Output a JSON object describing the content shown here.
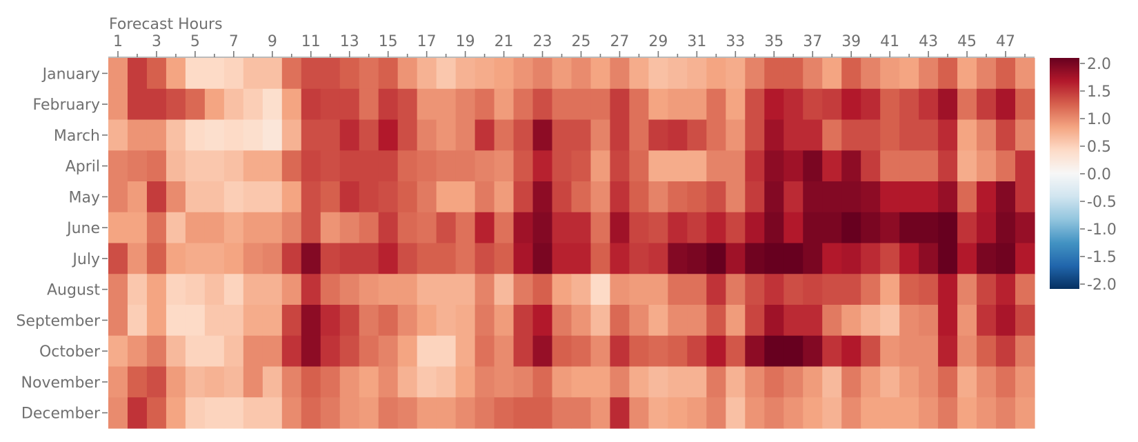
{
  "chart_data": {
    "type": "heatmap",
    "xlabel": "Forecast Hours",
    "ylabel": "",
    "x": [
      1,
      2,
      3,
      4,
      5,
      6,
      7,
      8,
      9,
      10,
      11,
      12,
      13,
      14,
      15,
      16,
      17,
      18,
      19,
      20,
      21,
      22,
      23,
      24,
      25,
      26,
      27,
      28,
      29,
      30,
      31,
      32,
      33,
      34,
      35,
      36,
      37,
      38,
      39,
      40,
      41,
      42,
      43,
      44,
      45,
      46,
      47,
      48
    ],
    "x_tick_labels": [
      "1",
      "3",
      "5",
      "7",
      "9",
      "11",
      "13",
      "15",
      "17",
      "19",
      "21",
      "23",
      "25",
      "27",
      "29",
      "31",
      "33",
      "35",
      "37",
      "39",
      "41",
      "43",
      "45",
      "47"
    ],
    "y": [
      "January",
      "February",
      "March",
      "April",
      "May",
      "June",
      "July",
      "August",
      "September",
      "October",
      "November",
      "December"
    ],
    "zlim": [
      -2.0,
      2.0
    ],
    "colorscale": "RdBu (reversed)",
    "colorbar_ticks": [
      "2.0",
      "1.5",
      "1.0",
      "0.5",
      "0.0",
      "-0.5",
      "-1.0",
      "-1.5",
      "-2.0"
    ],
    "z": [
      [
        0.9,
        1.4,
        1.2,
        0.8,
        0.4,
        0.4,
        0.45,
        0.6,
        0.6,
        1.1,
        1.3,
        1.3,
        1.2,
        1.1,
        1.2,
        0.9,
        0.7,
        0.55,
        0.7,
        0.75,
        0.8,
        0.9,
        1.0,
        0.85,
        0.95,
        0.8,
        1.0,
        0.75,
        0.6,
        0.65,
        0.7,
        0.8,
        0.75,
        1.0,
        1.2,
        1.2,
        1.0,
        0.8,
        1.2,
        1.0,
        0.85,
        0.8,
        1.0,
        1.2,
        0.8,
        1.0,
        1.2,
        0.9
      ],
      [
        0.9,
        1.4,
        1.4,
        1.3,
        1.15,
        0.8,
        0.6,
        0.5,
        0.35,
        0.8,
        1.4,
        1.35,
        1.35,
        1.1,
        1.4,
        1.3,
        0.9,
        0.9,
        1.0,
        1.1,
        0.85,
        1.1,
        1.3,
        1.1,
        1.1,
        1.1,
        1.4,
        1.1,
        0.8,
        0.85,
        0.85,
        1.1,
        0.8,
        1.3,
        1.6,
        1.5,
        1.35,
        1.4,
        1.6,
        1.5,
        1.2,
        1.3,
        1.45,
        1.7,
        1.1,
        1.4,
        1.65,
        1.2
      ],
      [
        0.7,
        0.9,
        0.9,
        0.6,
        0.4,
        0.35,
        0.4,
        0.35,
        0.25,
        0.7,
        1.3,
        1.3,
        1.5,
        1.3,
        1.6,
        1.3,
        1.0,
        0.9,
        1.0,
        1.45,
        1.1,
        1.3,
        1.8,
        1.3,
        1.3,
        1.0,
        1.4,
        1.1,
        1.4,
        1.45,
        1.3,
        1.1,
        0.9,
        1.3,
        1.7,
        1.5,
        1.5,
        1.1,
        1.3,
        1.3,
        1.2,
        1.3,
        1.3,
        1.5,
        0.8,
        1.0,
        1.35,
        1.0
      ],
      [
        1.0,
        1.05,
        1.1,
        0.65,
        0.55,
        0.55,
        0.6,
        0.75,
        0.75,
        1.15,
        1.35,
        1.3,
        1.35,
        1.35,
        1.35,
        1.15,
        1.1,
        1.05,
        1.05,
        1.0,
        0.95,
        1.25,
        1.55,
        1.3,
        1.25,
        0.85,
        1.35,
        1.15,
        0.75,
        0.75,
        0.75,
        1.0,
        1.0,
        1.45,
        1.8,
        1.7,
        1.9,
        1.55,
        1.8,
        1.4,
        1.1,
        1.1,
        1.1,
        1.4,
        0.75,
        0.9,
        1.1,
        1.45
      ],
      [
        1.0,
        0.85,
        1.4,
        0.95,
        0.6,
        0.6,
        0.5,
        0.55,
        0.55,
        0.8,
        1.3,
        1.2,
        1.45,
        1.35,
        1.3,
        1.2,
        1.05,
        0.8,
        0.8,
        1.05,
        0.85,
        1.35,
        1.8,
        1.35,
        1.15,
        0.95,
        1.45,
        1.2,
        1.0,
        1.15,
        1.2,
        1.3,
        1.0,
        1.4,
        1.85,
        1.5,
        1.85,
        1.85,
        1.85,
        1.8,
        1.6,
        1.6,
        1.6,
        1.75,
        1.15,
        1.6,
        1.85,
        1.45
      ],
      [
        0.8,
        0.8,
        1.1,
        0.6,
        0.85,
        0.85,
        0.75,
        0.85,
        0.85,
        1.0,
        1.3,
        0.9,
        1.0,
        1.1,
        1.4,
        1.15,
        1.1,
        1.3,
        1.1,
        1.55,
        1.1,
        1.7,
        1.85,
        1.5,
        1.5,
        1.1,
        1.7,
        1.35,
        1.3,
        1.5,
        1.4,
        1.55,
        1.35,
        1.65,
        1.9,
        1.6,
        1.9,
        1.9,
        2.0,
        1.9,
        1.8,
        1.95,
        1.95,
        2.1,
        1.45,
        1.65,
        1.9,
        1.75
      ],
      [
        1.3,
        0.9,
        1.2,
        0.8,
        0.75,
        0.75,
        0.8,
        0.95,
        1.0,
        1.4,
        1.85,
        1.35,
        1.4,
        1.4,
        1.55,
        1.3,
        1.2,
        1.2,
        1.1,
        1.3,
        1.2,
        1.65,
        1.9,
        1.55,
        1.55,
        1.2,
        1.55,
        1.4,
        1.45,
        1.85,
        1.9,
        2.05,
        1.7,
        1.95,
        2.2,
        2.0,
        1.9,
        1.6,
        1.65,
        1.5,
        1.35,
        1.6,
        1.8,
        2.1,
        1.6,
        1.9,
        1.95,
        1.6
      ],
      [
        1.0,
        0.55,
        0.8,
        0.45,
        0.5,
        0.6,
        0.45,
        0.7,
        0.7,
        0.9,
        1.45,
        1.1,
        1.0,
        0.9,
        0.85,
        0.85,
        0.7,
        0.7,
        0.7,
        1.0,
        0.65,
        1.05,
        1.2,
        0.8,
        0.7,
        0.4,
        0.9,
        0.85,
        0.85,
        1.1,
        1.1,
        1.45,
        1.05,
        1.3,
        1.45,
        1.3,
        1.35,
        1.3,
        1.3,
        1.1,
        0.8,
        1.2,
        1.25,
        1.6,
        1.0,
        1.35,
        1.55,
        1.1
      ],
      [
        1.0,
        0.5,
        0.8,
        0.4,
        0.4,
        0.55,
        0.55,
        0.75,
        0.75,
        1.35,
        1.8,
        1.5,
        1.35,
        1.05,
        1.15,
        0.95,
        0.8,
        0.7,
        0.75,
        1.05,
        0.85,
        1.4,
        1.6,
        1.05,
        0.9,
        0.65,
        1.15,
        0.95,
        0.75,
        0.95,
        0.95,
        1.25,
        0.85,
        1.35,
        1.7,
        1.5,
        1.5,
        1.05,
        0.85,
        0.7,
        0.6,
        0.95,
        1.0,
        1.6,
        0.9,
        1.45,
        1.65,
        1.35
      ],
      [
        0.75,
        0.9,
        1.05,
        0.65,
        0.45,
        0.45,
        0.6,
        0.95,
        0.95,
        1.45,
        1.8,
        1.45,
        1.3,
        1.1,
        1.0,
        0.8,
        0.45,
        0.45,
        0.75,
        1.1,
        0.95,
        1.4,
        1.75,
        1.2,
        1.15,
        0.95,
        1.45,
        1.2,
        1.15,
        1.2,
        1.35,
        1.6,
        1.25,
        1.8,
        2.2,
        2.15,
        1.85,
        1.45,
        1.6,
        1.3,
        0.9,
        0.95,
        0.95,
        1.55,
        0.95,
        1.2,
        1.4,
        1.05
      ],
      [
        0.9,
        1.2,
        1.3,
        0.85,
        0.65,
        0.7,
        0.65,
        0.95,
        0.65,
        1.0,
        1.2,
        1.1,
        0.9,
        0.8,
        0.95,
        0.7,
        0.55,
        0.6,
        0.8,
        1.0,
        0.95,
        1.0,
        1.15,
        0.85,
        0.8,
        0.8,
        1.0,
        0.75,
        0.65,
        0.7,
        0.7,
        1.05,
        0.7,
        0.95,
        1.1,
        1.0,
        0.85,
        0.65,
        1.05,
        0.85,
        0.7,
        0.85,
        0.95,
        1.15,
        0.75,
        0.95,
        1.1,
        0.9
      ],
      [
        0.95,
        1.45,
        1.2,
        0.8,
        0.5,
        0.45,
        0.45,
        0.55,
        0.55,
        0.95,
        1.15,
        1.05,
        0.9,
        0.85,
        1.05,
        1.0,
        0.85,
        0.85,
        0.95,
        1.05,
        1.15,
        1.2,
        1.2,
        1.05,
        1.05,
        0.9,
        1.5,
        0.95,
        0.75,
        0.8,
        0.85,
        1.0,
        0.6,
        0.9,
        1.0,
        0.9,
        0.8,
        0.7,
        0.95,
        0.8,
        0.8,
        0.8,
        0.9,
        1.05,
        0.8,
        0.9,
        1.0,
        0.85
      ]
    ]
  }
}
